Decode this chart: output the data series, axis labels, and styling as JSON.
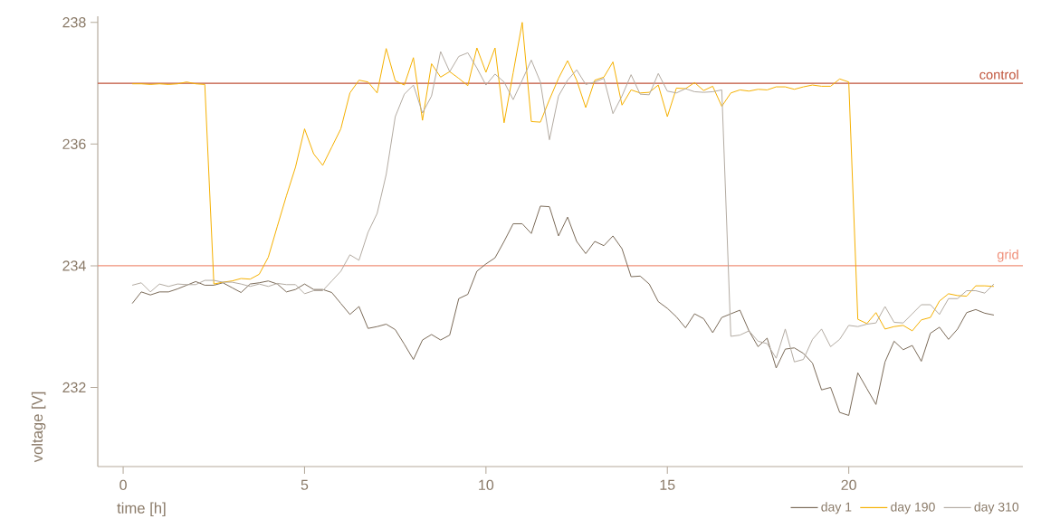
{
  "chart_data": {
    "type": "line",
    "xlabel": "time [h]",
    "ylabel": "voltage [V]",
    "xlim": [
      -0.7,
      24.8
    ],
    "ylim": [
      230.7,
      238.1
    ],
    "xticks": [
      0,
      5,
      10,
      15,
      20
    ],
    "yticks": [
      232,
      234,
      236,
      238
    ],
    "grid": false,
    "legend": "bottom right",
    "x": [
      0.25,
      0.5,
      0.75,
      1.0,
      1.25,
      1.5,
      1.75,
      2.0,
      2.25,
      2.5,
      2.75,
      3.0,
      3.25,
      3.5,
      3.75,
      4.0,
      4.25,
      4.5,
      4.75,
      5.0,
      5.25,
      5.5,
      5.75,
      6.0,
      6.25,
      6.5,
      6.75,
      7.0,
      7.25,
      7.5,
      7.75,
      8.0,
      8.25,
      8.5,
      8.75,
      9.0,
      9.25,
      9.5,
      9.75,
      10.0,
      10.25,
      10.5,
      10.75,
      11.0,
      11.25,
      11.5,
      11.75,
      12.0,
      12.25,
      12.5,
      12.75,
      13.0,
      13.25,
      13.5,
      13.75,
      14.0,
      14.25,
      14.5,
      14.75,
      15.0,
      15.25,
      15.5,
      15.75,
      16.0,
      16.25,
      16.5,
      16.75,
      17.0,
      17.25,
      17.5,
      17.75,
      18.0,
      18.25,
      18.5,
      18.75,
      19.0,
      19.25,
      19.5,
      19.75,
      20.0,
      20.25,
      20.5,
      20.75,
      21.0,
      21.25,
      21.5,
      21.75,
      22.0,
      22.25,
      22.5,
      22.75,
      23.0,
      23.25,
      23.5,
      23.75,
      24.0
    ],
    "series": [
      {
        "name": "day 1",
        "color": "#7a6a58",
        "values": [
          233.38,
          233.57,
          233.52,
          233.57,
          233.57,
          233.62,
          233.68,
          233.74,
          233.68,
          233.68,
          233.72,
          233.64,
          233.56,
          233.7,
          233.72,
          233.75,
          233.7,
          233.57,
          233.61,
          233.7,
          233.61,
          233.61,
          233.56,
          233.38,
          233.2,
          233.33,
          232.97,
          233.0,
          233.04,
          232.95,
          232.71,
          232.46,
          232.78,
          232.87,
          232.78,
          232.86,
          233.46,
          233.53,
          233.91,
          234.03,
          234.13,
          234.4,
          234.69,
          234.69,
          234.53,
          234.98,
          234.97,
          234.49,
          234.8,
          234.4,
          234.2,
          234.4,
          234.33,
          234.49,
          234.28,
          233.82,
          233.83,
          233.7,
          233.41,
          233.3,
          233.16,
          232.98,
          233.21,
          233.13,
          232.9,
          233.15,
          233.21,
          233.27,
          232.93,
          232.67,
          232.81,
          232.32,
          232.63,
          232.65,
          232.56,
          232.4,
          231.96,
          232.0,
          231.59,
          231.54,
          232.24,
          231.98,
          231.72,
          232.42,
          232.76,
          232.62,
          232.69,
          232.43,
          232.89,
          232.99,
          232.79,
          232.96,
          233.23,
          233.28,
          233.22,
          233.19
        ]
      },
      {
        "name": "day 190",
        "color": "#f5b000",
        "values": [
          236.99,
          236.99,
          236.98,
          236.99,
          236.98,
          236.99,
          237.02,
          236.99,
          236.98,
          233.7,
          233.73,
          233.75,
          233.79,
          233.78,
          233.86,
          234.14,
          234.65,
          235.15,
          235.62,
          236.25,
          235.84,
          235.65,
          235.95,
          236.25,
          236.84,
          237.05,
          237.02,
          236.84,
          237.57,
          237.04,
          236.97,
          237.42,
          236.39,
          237.32,
          237.1,
          237.19,
          237.08,
          236.96,
          237.58,
          237.18,
          237.58,
          236.35,
          237.17,
          238.0,
          236.37,
          236.36,
          236.73,
          237.08,
          237.37,
          237.05,
          236.6,
          237.05,
          237.1,
          237.35,
          236.64,
          236.89,
          236.84,
          236.85,
          236.97,
          236.45,
          236.92,
          236.91,
          237.01,
          236.88,
          236.95,
          236.62,
          236.84,
          236.89,
          236.87,
          236.9,
          236.89,
          236.94,
          236.94,
          236.9,
          236.94,
          236.97,
          236.95,
          236.95,
          237.07,
          237.02,
          233.12,
          233.05,
          233.23,
          232.96,
          233.0,
          233.02,
          232.93,
          233.11,
          233.15,
          233.42,
          233.54,
          233.51,
          233.5,
          233.67,
          233.67,
          233.66
        ]
      },
      {
        "name": "day 310",
        "color": "#b3aba2",
        "values": [
          233.68,
          233.72,
          233.57,
          233.7,
          233.66,
          233.7,
          233.69,
          233.69,
          233.76,
          233.76,
          233.73,
          233.73,
          233.7,
          233.66,
          233.7,
          233.66,
          233.71,
          233.69,
          233.69,
          233.54,
          233.59,
          233.59,
          233.75,
          233.91,
          234.18,
          234.09,
          234.55,
          234.86,
          235.5,
          236.45,
          236.82,
          236.97,
          236.51,
          236.79,
          237.52,
          237.19,
          237.44,
          237.5,
          237.25,
          236.97,
          237.15,
          237.02,
          236.73,
          237.05,
          237.38,
          237.02,
          236.07,
          236.79,
          237.05,
          237.22,
          236.98,
          237.02,
          237.08,
          236.5,
          236.79,
          237.14,
          236.82,
          236.81,
          237.16,
          236.87,
          236.84,
          236.91,
          236.86,
          236.85,
          236.86,
          236.89,
          232.84,
          232.86,
          232.93,
          232.76,
          232.72,
          232.48,
          232.96,
          232.42,
          232.46,
          232.79,
          232.96,
          232.67,
          232.79,
          233.02,
          233.0,
          233.04,
          233.06,
          233.33,
          233.07,
          233.06,
          233.21,
          233.36,
          233.36,
          233.2,
          233.46,
          233.46,
          233.59,
          233.59,
          233.55,
          233.7
        ]
      }
    ],
    "ref_lines": [
      {
        "axis": "y",
        "value": 237,
        "label": "control",
        "color": "#c0533a"
      },
      {
        "axis": "y",
        "value": 234,
        "label": "grid",
        "color": "#f0907a"
      }
    ]
  }
}
